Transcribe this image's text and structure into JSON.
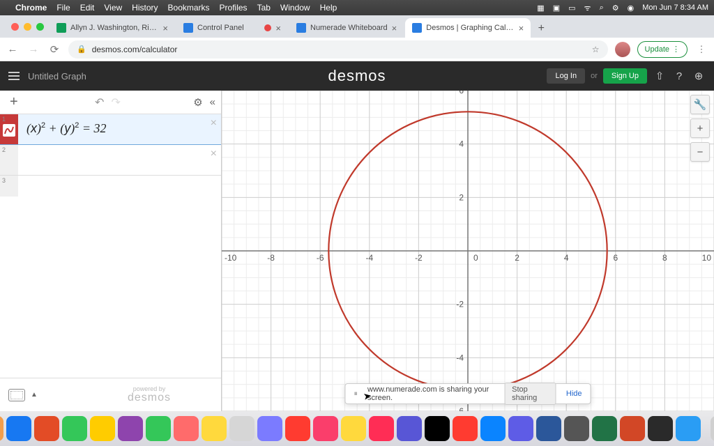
{
  "menubar": {
    "app": "Chrome",
    "items": [
      "File",
      "Edit",
      "View",
      "History",
      "Bookmarks",
      "Profiles",
      "Tab",
      "Window",
      "Help"
    ],
    "datetime": "Mon Jun 7  8:34 AM"
  },
  "traffic": {
    "close": "#ff5f57",
    "min": "#febc2e",
    "max": "#28c840"
  },
  "tabs": [
    {
      "title": "Allyn J. Washington, Richard S",
      "fav": "#0f9d58"
    },
    {
      "title": "Control Panel",
      "fav": "#2a7de1",
      "rec": true
    },
    {
      "title": "Numerade Whiteboard",
      "fav": "#2a7de1"
    },
    {
      "title": "Desmos | Graphing Calculator",
      "fav": "#2a7de1",
      "active": true
    }
  ],
  "url": "desmos.com/calculator",
  "update_label": "Update",
  "desmos": {
    "title": "Untitled Graph",
    "logo": "desmos",
    "login": "Log In",
    "or": "or",
    "signup": "Sign Up",
    "expr_html": "(<i>x</i>)<sup>2</sup> + (<i>y</i>)<sup>2</sup> = 32",
    "expr_color": "#c63939"
  },
  "graph": {
    "x_min": -10,
    "x_max": 10,
    "y_min": -6,
    "y_max": 6,
    "xticks": [
      -10,
      -8,
      -6,
      -4,
      -2,
      0,
      2,
      4,
      6,
      8,
      10
    ],
    "yticks": [
      -6,
      -4,
      -2,
      2,
      4,
      6
    ],
    "major_step": 2,
    "minor_step": 0.5,
    "circle_r": 5.656854,
    "axis_color": "#777",
    "major_grid": "#cfcfcf",
    "minor_grid": "#ececec",
    "curve_color": "#c0392b",
    "curve_width": 2.2,
    "tick_font": "12",
    "tick_color": "#555"
  },
  "sharebar": {
    "msg": "www.numerade.com is sharing your screen.",
    "stop": "Stop sharing",
    "hide": "Hide"
  },
  "powered": {
    "l1": "powered by",
    "l2": "desmos"
  },
  "dock_colors": [
    "#2a9df4",
    "#f29e4c",
    "#1778f2",
    "#e34c26",
    "#34c759",
    "#ffcc00",
    "#8e44ad",
    "#34c759",
    "#ff6b6b",
    "#ffd93d",
    "#d6d6d6",
    "#7b7bff",
    "#ff3b30",
    "#fa3e6b",
    "#ffd93d",
    "#ff2d55",
    "#5856d6",
    "#000000",
    "#ff3b30",
    "#0a84ff",
    "#5e5ce6",
    "#2b579a",
    "#555555",
    "#217346",
    "#d24726",
    "#2a2a2a",
    "#2a9df4"
  ],
  "dock_trash": [
    "#d0d0d0",
    "#d0d0d0"
  ]
}
